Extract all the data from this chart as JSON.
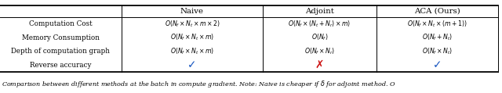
{
  "col_headers": [
    "",
    "Naive",
    "Adjoint",
    "ACA (Ours)"
  ],
  "row_labels": [
    "Computation Cost",
    "Memory Consumption",
    "Depth of computation graph",
    "Reverse accuracy"
  ],
  "naive_formulas": [
    "$O(N_f \\times N_t \\times m \\times 2)$",
    "$O(N_f \\times N_t \\times m)$",
    "$O(N_f \\times N_t \\times m)$"
  ],
  "adjoint_formulas": [
    "$O(N_f \\times (N_t + N_r) \\times m)$",
    "$O(N_f)$",
    "$O(N_f \\times N_r)$"
  ],
  "aca_formulas": [
    "$O(N_f \\times N_t \\times (m+1))$",
    "$O(N_f + N_t)$",
    "$O(N_f \\times N_t)$"
  ],
  "check_blue": "#1655c0",
  "cross_red": "#cc1111",
  "line_color": "#000000",
  "font_size": 6.8,
  "caption_fontsize": 5.8,
  "caption": "Comparison between different methods at the batch in compute gradient. Note: Naive is cheaper if $\\delta$ for adjoint method. O"
}
